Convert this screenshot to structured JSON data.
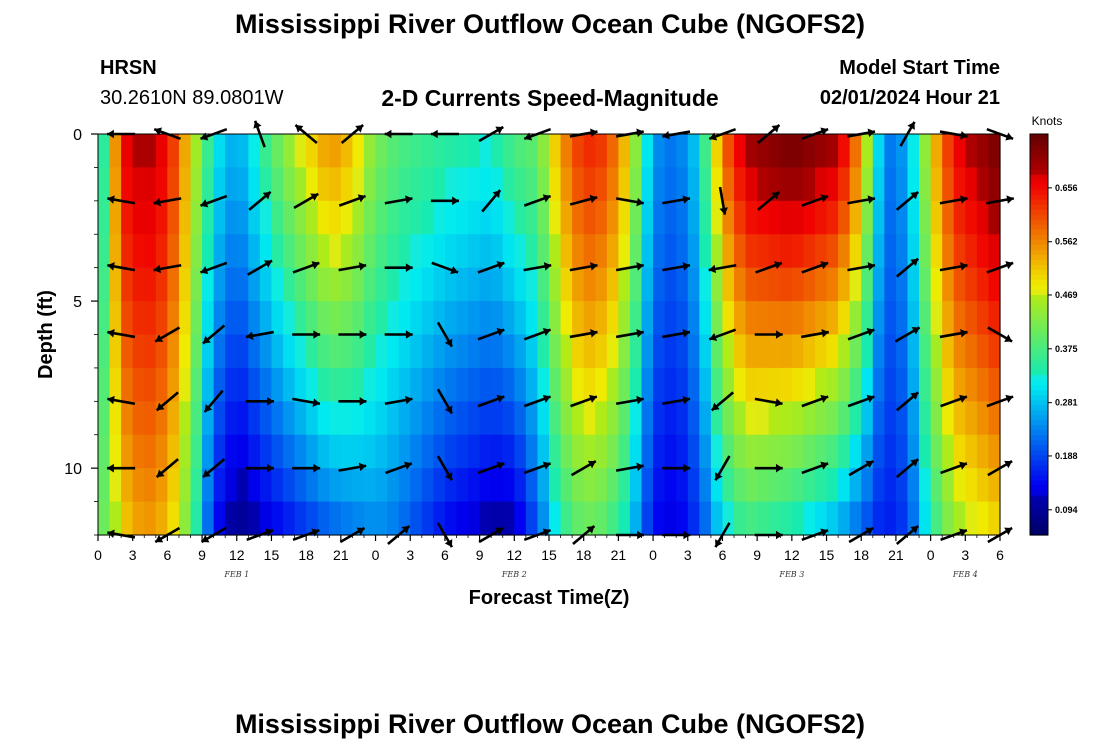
{
  "header": {
    "title": "Mississippi River Outflow Ocean Cube (NGOFS2)",
    "station_name": "HRSN",
    "coordinates": "30.2610N  89.0801W",
    "subtitle": "2-D Currents Speed-Magnitude",
    "model_start_label": "Model Start Time",
    "model_start_value": "02/01/2024 Hour 21"
  },
  "footer": {
    "title": "Mississippi River Outflow Ocean Cube (NGOFS2)"
  },
  "chart_data": {
    "type": "heatmap",
    "title": "2-D Currents Speed-Magnitude",
    "xlabel": "Forecast Time(Z)",
    "ylabel": "Depth (ft)",
    "x_tick_labels": [
      "0",
      "3",
      "6",
      "9",
      "12",
      "15",
      "18",
      "21",
      "0",
      "3",
      "6",
      "9",
      "12",
      "15",
      "18",
      "21",
      "0",
      "3",
      "6",
      "9",
      "12",
      "15",
      "18",
      "21",
      "0",
      "3",
      "6"
    ],
    "x_range_hours": [
      0,
      78
    ],
    "day_labels": [
      {
        "label": "FEB 1",
        "hour": 12
      },
      {
        "label": "FEB 2",
        "hour": 36
      },
      {
        "label": "FEB 3",
        "hour": 60
      },
      {
        "label": "FEB 4",
        "hour": 75
      }
    ],
    "y_ticks": [
      0,
      5,
      10
    ],
    "ylim": [
      0,
      12
    ],
    "y_inverted": true,
    "colorbar": {
      "unit": "Knots",
      "range": [
        0.05,
        0.75
      ],
      "ticks": [
        0.094,
        0.188,
        0.281,
        0.375,
        0.469,
        0.562,
        0.656
      ],
      "tick_labels": [
        "0.094",
        "0.188",
        "0.281",
        "0.375",
        "0.469",
        "0.562",
        "0.656"
      ],
      "colormap": "jet"
    },
    "speed_profile": {
      "hours": [
        0,
        1,
        2,
        4,
        6,
        8,
        10,
        12,
        16,
        20,
        22,
        24,
        26,
        30,
        34,
        36,
        38,
        40,
        42,
        44,
        46,
        48,
        50,
        52,
        54,
        56,
        60,
        64,
        66,
        68,
        70,
        72,
        74,
        78
      ],
      "speed_top": [
        0.25,
        0.45,
        0.66,
        0.7,
        0.66,
        0.5,
        0.32,
        0.26,
        0.43,
        0.56,
        0.52,
        0.42,
        0.38,
        0.35,
        0.33,
        0.38,
        0.4,
        0.55,
        0.64,
        0.62,
        0.5,
        0.25,
        0.22,
        0.3,
        0.58,
        0.7,
        0.74,
        0.7,
        0.55,
        0.22,
        0.26,
        0.5,
        0.66,
        0.74
      ],
      "speed_bottom": [
        0.4,
        0.42,
        0.5,
        0.55,
        0.52,
        0.4,
        0.15,
        0.08,
        0.14,
        0.2,
        0.22,
        0.24,
        0.22,
        0.14,
        0.1,
        0.1,
        0.2,
        0.34,
        0.4,
        0.38,
        0.3,
        0.14,
        0.12,
        0.18,
        0.3,
        0.36,
        0.32,
        0.26,
        0.2,
        0.15,
        0.18,
        0.34,
        0.44,
        0.5
      ]
    },
    "vectors": {
      "hours": [
        2,
        6,
        10,
        14,
        18,
        22,
        26,
        30,
        34,
        38,
        42,
        46,
        50,
        54,
        58,
        62,
        66,
        70,
        74,
        78
      ],
      "depths": [
        0,
        2,
        4,
        6,
        8,
        10,
        12
      ],
      "direction_deg": [
        [
          180,
          160,
          200,
          110,
          140,
          40,
          180,
          180,
          30,
          200,
          10,
          10,
          190,
          200,
          40,
          20,
          10,
          60,
          350,
          340
        ],
        [
          170,
          190,
          200,
          40,
          30,
          20,
          10,
          0,
          50,
          20,
          15,
          350,
          10,
          280,
          40,
          20,
          10,
          40,
          10,
          10
        ],
        [
          170,
          190,
          200,
          30,
          20,
          10,
          0,
          340,
          20,
          10,
          10,
          10,
          10,
          190,
          20,
          20,
          10,
          40,
          10,
          20
        ],
        [
          170,
          210,
          220,
          190,
          0,
          0,
          0,
          300,
          20,
          20,
          10,
          10,
          10,
          200,
          0,
          10,
          20,
          30,
          10,
          330
        ],
        [
          170,
          220,
          230,
          0,
          350,
          0,
          10,
          300,
          20,
          20,
          20,
          10,
          10,
          220,
          350,
          20,
          20,
          40,
          20,
          20
        ],
        [
          180,
          220,
          220,
          0,
          0,
          10,
          20,
          300,
          20,
          20,
          30,
          10,
          0,
          240,
          0,
          20,
          30,
          40,
          20,
          30
        ],
        [
          170,
          210,
          210,
          20,
          20,
          30,
          40,
          300,
          30,
          20,
          40,
          0,
          0,
          240,
          0,
          20,
          30,
          40,
          20,
          30
        ]
      ]
    }
  }
}
